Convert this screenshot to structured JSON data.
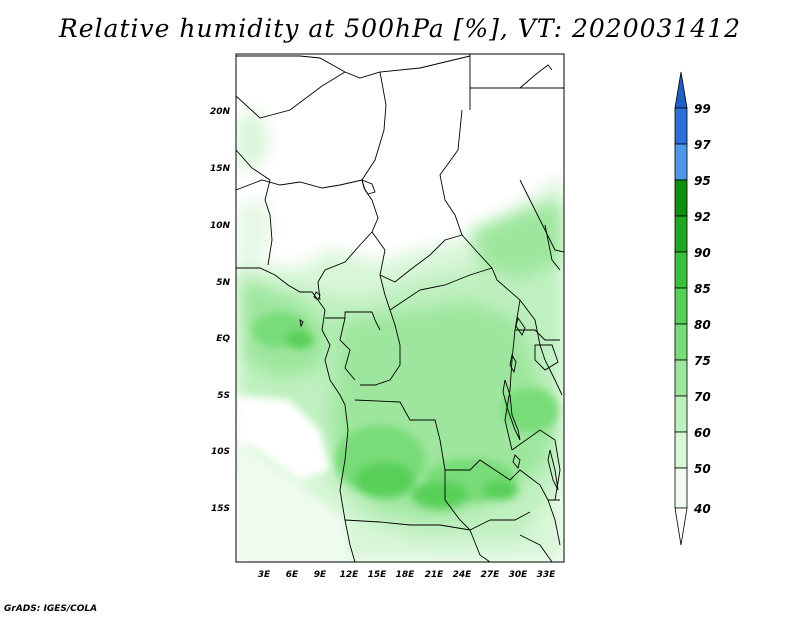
{
  "title": "Relative humidity at 500hPa [%], VT: 2020031412",
  "footer": "GrADS: IGES/COLA",
  "map": {
    "lat_ticks": [
      "20N",
      "15N",
      "10N",
      "5N",
      "EQ",
      "5S",
      "10S",
      "15S"
    ],
    "lon_ticks": [
      "3E",
      "6E",
      "9E",
      "12E",
      "15E",
      "18E",
      "21E",
      "24E",
      "27E",
      "30E",
      "33E"
    ]
  },
  "colorbar": {
    "levels": [
      "99",
      "97",
      "95",
      "92",
      "90",
      "85",
      "80",
      "75",
      "70",
      "60",
      "50",
      "40"
    ],
    "colors": {
      "over_99": "#1e60c8",
      "97_99": "#2a70d8",
      "95_97": "#4c9ae6",
      "92_95": "#0e8f0e",
      "90_92": "#22a622",
      "85_90": "#3cbf3c",
      "80_85": "#58d058",
      "75_80": "#78dc78",
      "70_75": "#9ee69e",
      "60_70": "#bff0bf",
      "50_60": "#d8f6d8",
      "40_50": "#eefbee",
      "under_40": "#ffffff"
    }
  }
}
